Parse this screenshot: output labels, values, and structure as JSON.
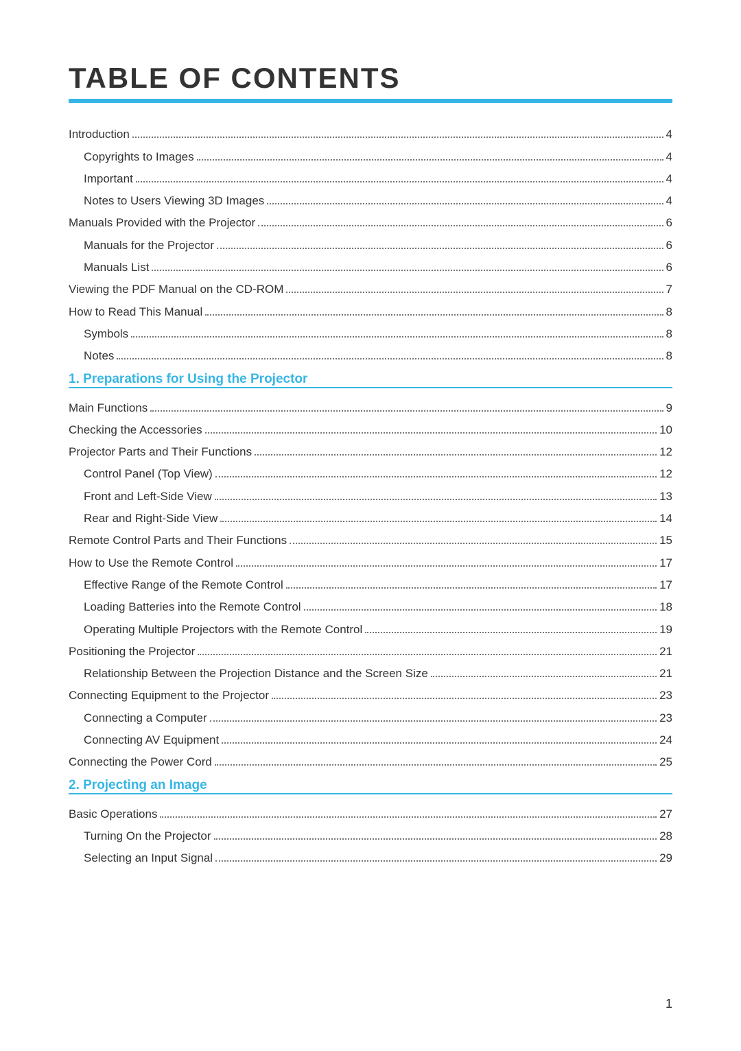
{
  "title": "TABLE OF CONTENTS",
  "accent_color": "#37b6e6",
  "page_number": "1",
  "entries": [
    {
      "type": "item",
      "indent": 0,
      "label": "Introduction",
      "page": "4"
    },
    {
      "type": "item",
      "indent": 1,
      "label": "Copyrights to Images",
      "page": "4"
    },
    {
      "type": "item",
      "indent": 1,
      "label": "Important",
      "page": "4"
    },
    {
      "type": "item",
      "indent": 1,
      "label": "Notes to Users Viewing 3D Images",
      "page": "4"
    },
    {
      "type": "item",
      "indent": 0,
      "label": "Manuals Provided with the Projector",
      "page": "6"
    },
    {
      "type": "item",
      "indent": 1,
      "label": "Manuals for the Projector",
      "page": "6"
    },
    {
      "type": "item",
      "indent": 1,
      "label": "Manuals List",
      "page": "6"
    },
    {
      "type": "item",
      "indent": 0,
      "label": "Viewing the PDF Manual on the CD-ROM",
      "page": "7"
    },
    {
      "type": "item",
      "indent": 0,
      "label": "How to Read This Manual",
      "page": "8"
    },
    {
      "type": "item",
      "indent": 1,
      "label": "Symbols",
      "page": "8"
    },
    {
      "type": "item",
      "indent": 1,
      "label": "Notes",
      "page": "8"
    },
    {
      "type": "section",
      "label": "1. Preparations for Using the Projector"
    },
    {
      "type": "item",
      "indent": 0,
      "label": "Main Functions",
      "page": "9"
    },
    {
      "type": "item",
      "indent": 0,
      "label": "Checking the Accessories",
      "page": "10"
    },
    {
      "type": "item",
      "indent": 0,
      "label": "Projector Parts and Their Functions",
      "page": "12"
    },
    {
      "type": "item",
      "indent": 1,
      "label": "Control Panel (Top View)",
      "page": "12"
    },
    {
      "type": "item",
      "indent": 1,
      "label": "Front and Left-Side View",
      "page": "13"
    },
    {
      "type": "item",
      "indent": 1,
      "label": "Rear and Right-Side View",
      "page": "14"
    },
    {
      "type": "item",
      "indent": 0,
      "label": "Remote Control Parts and Their Functions",
      "page": "15"
    },
    {
      "type": "item",
      "indent": 0,
      "label": "How to Use the Remote Control",
      "page": "17"
    },
    {
      "type": "item",
      "indent": 1,
      "label": "Effective Range of the Remote Control",
      "page": "17"
    },
    {
      "type": "item",
      "indent": 1,
      "label": "Loading Batteries into the Remote Control",
      "page": "18"
    },
    {
      "type": "item",
      "indent": 1,
      "label": "Operating Multiple Projectors with the Remote Control",
      "page": "19"
    },
    {
      "type": "item",
      "indent": 0,
      "label": "Positioning the Projector",
      "page": "21"
    },
    {
      "type": "item",
      "indent": 1,
      "label": "Relationship Between the Projection Distance and the Screen Size",
      "page": "21"
    },
    {
      "type": "item",
      "indent": 0,
      "label": "Connecting Equipment to the Projector",
      "page": "23"
    },
    {
      "type": "item",
      "indent": 1,
      "label": "Connecting a Computer",
      "page": "23"
    },
    {
      "type": "item",
      "indent": 1,
      "label": "Connecting AV Equipment",
      "page": "24"
    },
    {
      "type": "item",
      "indent": 0,
      "label": "Connecting the Power Cord",
      "page": "25"
    },
    {
      "type": "section",
      "label": "2. Projecting an Image"
    },
    {
      "type": "item",
      "indent": 0,
      "label": "Basic Operations",
      "page": "27"
    },
    {
      "type": "item",
      "indent": 1,
      "label": "Turning On the Projector",
      "page": "28"
    },
    {
      "type": "item",
      "indent": 1,
      "label": "Selecting an Input Signal",
      "page": "29"
    }
  ]
}
